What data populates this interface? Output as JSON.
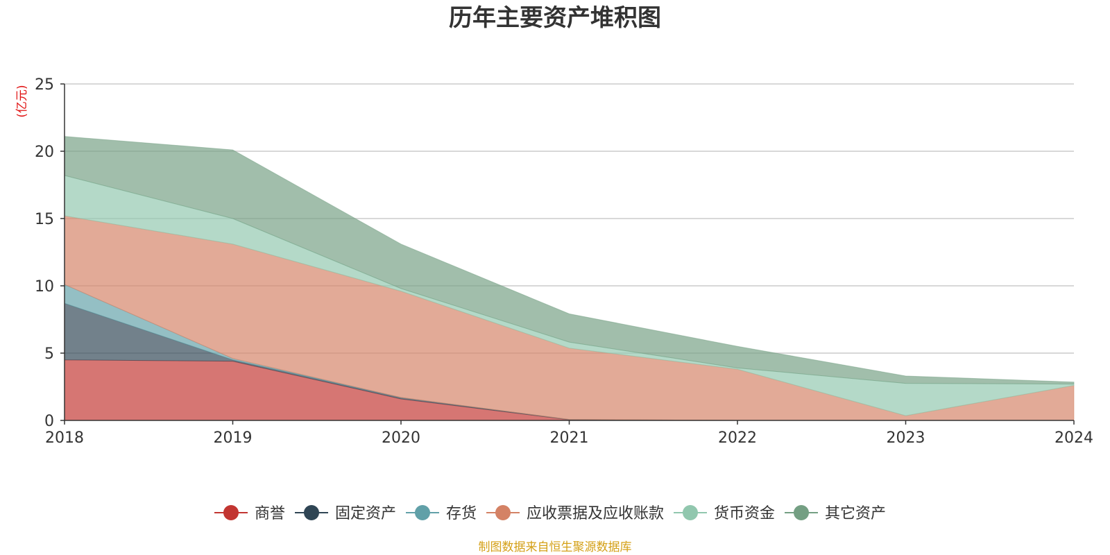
{
  "chart_data": {
    "type": "area",
    "stacked": true,
    "title": "历年主要资产堆积图",
    "y_unit": "(亿元)",
    "x": [
      "2018",
      "2019",
      "2020",
      "2021",
      "2022",
      "2023",
      "2024"
    ],
    "ylim": [
      0,
      25
    ],
    "yticks": [
      0,
      5,
      10,
      15,
      20,
      25
    ],
    "grid": true,
    "legend_position": "bottom",
    "series": [
      {
        "name": "商誉",
        "color": "#c23531",
        "values": [
          4.5,
          4.4,
          1.6,
          0.05,
          0,
          0,
          0
        ]
      },
      {
        "name": "固定资产",
        "color": "#2f4554",
        "values": [
          4.2,
          0.1,
          0.1,
          0.02,
          0,
          0,
          0
        ]
      },
      {
        "name": "存货",
        "color": "#61a0a8",
        "values": [
          1.4,
          0.1,
          0,
          0,
          0,
          0,
          0
        ]
      },
      {
        "name": "应收票据及应收账款",
        "color": "#d48265",
        "values": [
          5.1,
          8.5,
          7.9,
          5.3,
          3.8,
          0.35,
          2.6
        ]
      },
      {
        "name": "货币资金",
        "color": "#91c7ae",
        "values": [
          3.0,
          1.9,
          0.2,
          0.45,
          0.1,
          2.4,
          0.1
        ]
      },
      {
        "name": "其它资产",
        "color": "#749f83",
        "values": [
          2.9,
          5.1,
          3.3,
          2.1,
          1.6,
          0.55,
          0.15
        ]
      }
    ]
  },
  "source_text": "制图数据来自恒生聚源数据库",
  "colors": {
    "axis": "#333333",
    "grid": "#cccccc",
    "unit": "#e01010",
    "source": "#d4a017"
  }
}
